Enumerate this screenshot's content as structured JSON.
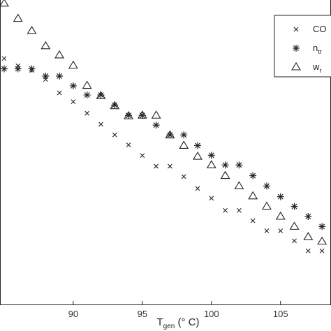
{
  "chart_data": {
    "type": "scatter",
    "title": "",
    "xlabel": {
      "main": "T",
      "sub": "gen",
      "rest": " (° C)"
    },
    "ylabel": "",
    "xlim": [
      84.7,
      108.6
    ],
    "ylim": [
      0,
      1
    ],
    "x_ticks": [
      {
        "value": 90,
        "label": "90"
      },
      {
        "value": 95,
        "label": "95"
      },
      {
        "value": 100,
        "label": "100"
      },
      {
        "value": 105,
        "label": "105"
      }
    ],
    "grid": false,
    "legend_position": "top-right",
    "legend": [
      {
        "label": "CO",
        "sub": ""
      },
      {
        "label": "n",
        "sub": "tr"
      },
      {
        "label": "w",
        "sub": "r"
      }
    ],
    "series": [
      {
        "name": "CO",
        "marker": "x",
        "x": [
          85,
          86,
          87,
          88,
          89,
          90,
          91,
          92,
          93,
          94,
          95,
          96,
          97,
          98,
          99,
          100,
          101,
          102,
          103,
          104,
          105,
          106,
          107,
          108
        ],
        "y": [
          0.808,
          0.784,
          0.769,
          0.739,
          0.695,
          0.666,
          0.628,
          0.592,
          0.557,
          0.524,
          0.489,
          0.454,
          0.454,
          0.42,
          0.381,
          0.349,
          0.309,
          0.309,
          0.275,
          0.242,
          0.242,
          0.209,
          0.176,
          0.176
        ]
      },
      {
        "name": "n_tr",
        "marker": "asterisk",
        "x": [
          85,
          86,
          87,
          88,
          89,
          90,
          91,
          92,
          93,
          94,
          95,
          96,
          97,
          98,
          99,
          100,
          101,
          102,
          103,
          104,
          105,
          106,
          107,
          108
        ],
        "y": [
          0.774,
          0.774,
          0.774,
          0.75,
          0.75,
          0.718,
          0.688,
          0.688,
          0.655,
          0.621,
          0.621,
          0.589,
          0.557,
          0.557,
          0.522,
          0.49,
          0.458,
          0.458,
          0.423,
          0.389,
          0.354,
          0.322,
          0.289,
          0.256
        ]
      },
      {
        "name": "w_r",
        "marker": "triangle",
        "x": [
          85,
          86,
          87,
          88,
          89,
          90,
          91,
          92,
          93,
          94,
          95,
          96,
          97,
          98,
          99,
          100,
          101,
          102,
          103,
          104,
          105,
          106,
          107,
          108
        ],
        "y": [
          0.989,
          0.939,
          0.899,
          0.849,
          0.819,
          0.785,
          0.719,
          0.685,
          0.652,
          0.619,
          0.621,
          0.621,
          0.556,
          0.522,
          0.486,
          0.458,
          0.423,
          0.389,
          0.356,
          0.322,
          0.289,
          0.256,
          0.222,
          0.207
        ]
      }
    ]
  }
}
